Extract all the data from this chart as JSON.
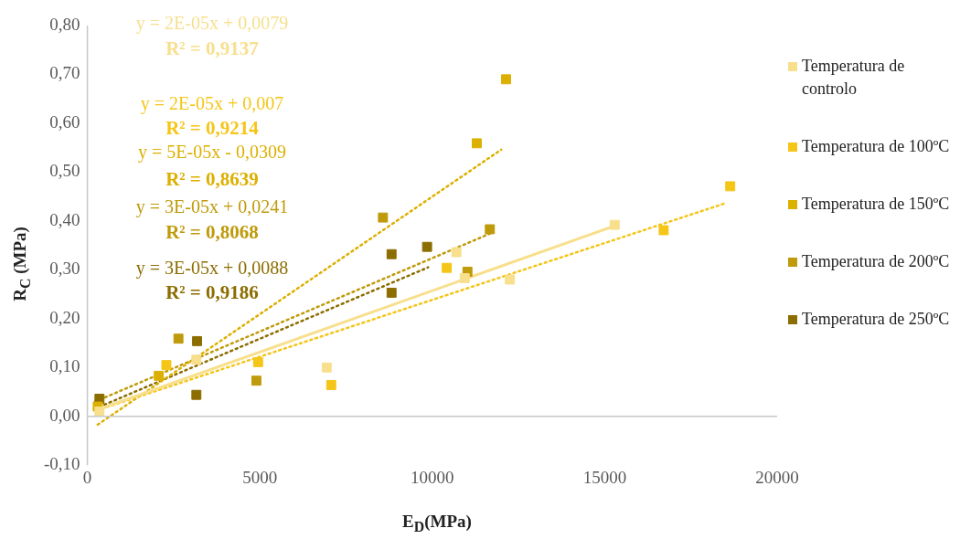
{
  "chart_data": {
    "type": "scatter",
    "xlabel": "E$_{D}$(MPa)",
    "ylabel": "R$_{C}$ (MPa)",
    "xlim": [
      0,
      20000
    ],
    "xticks": [
      0,
      5000,
      10000,
      15000,
      20000
    ],
    "ylim": [
      -0.1,
      0.8
    ],
    "yticks": [
      {
        "value": -0.1,
        "label": "-0,10"
      },
      {
        "value": 0,
        "label": "0,00"
      },
      {
        "value": 0.1,
        "label": "0,10"
      },
      {
        "value": 0.2,
        "label": "0,20"
      },
      {
        "value": 0.3,
        "label": "0,30"
      },
      {
        "value": 0.4,
        "label": "0,40"
      },
      {
        "value": 0.5,
        "label": "0,50"
      },
      {
        "value": 0.6,
        "label": "0,60"
      },
      {
        "value": 0.7,
        "label": "0,70"
      },
      {
        "value": 0.8,
        "label": "0,80"
      }
    ],
    "legend": "right",
    "marker": "square",
    "series": [
      {
        "name": "Temperatura de controlo",
        "color": "#f7df8c",
        "x": [
          350,
          3160,
          6940,
          10700,
          10940,
          12250,
          15290
        ],
        "values": [
          0.01,
          0.116,
          0.1,
          0.336,
          0.283,
          0.28,
          0.392
        ]
      },
      {
        "name": "Temperatura de 100ºC",
        "color": "#f5c518",
        "x": [
          2290,
          4950,
          7070,
          10420,
          16710,
          18640
        ],
        "values": [
          0.105,
          0.111,
          0.064,
          0.304,
          0.381,
          0.471
        ]
      },
      {
        "name": "Temperatura de 150ºC",
        "color": "#dcb000",
        "x": [
          300,
          2070,
          11290,
          12140
        ],
        "values": [
          0.02,
          0.083,
          0.559,
          0.69
        ]
      },
      {
        "name": "Temperatura de 200ºC",
        "color": "#bf9a0a",
        "x": [
          2640,
          4900,
          8570,
          11020,
          11670
        ],
        "values": [
          0.159,
          0.073,
          0.407,
          0.296,
          0.383
        ]
      },
      {
        "name": "Temperatura de 250ºC",
        "color": "#8c6d00",
        "x": [
          350,
          3180,
          3160,
          8820,
          8820,
          9850
        ],
        "values": [
          0.036,
          0.154,
          0.044,
          0.332,
          0.253,
          0.347
        ]
      },
      {
        "type": "line",
        "marker": "none",
        "color": "#f7df8c",
        "line_style": "solid",
        "x": [
          350,
          15290
        ],
        "values": [
          0.015,
          0.39
        ]
      },
      {
        "type": "line",
        "marker": "none",
        "color": "#f5c518",
        "line_style": "dotted",
        "x": [
          270,
          18530
        ],
        "values": [
          0.012,
          0.437
        ]
      },
      {
        "type": "line",
        "marker": "none",
        "color": "#dcb000",
        "line_style": "dotted",
        "x": [
          300,
          12000
        ],
        "values": [
          -0.017,
          0.546
        ]
      },
      {
        "type": "line",
        "marker": "none",
        "color": "#bf9a0a",
        "line_style": "dotted",
        "x": [
          220,
          11670
        ],
        "values": [
          0.03,
          0.374
        ]
      },
      {
        "type": "line",
        "marker": "none",
        "color": "#8c6d00",
        "line_style": "dotted",
        "x": [
          200,
          9880
        ],
        "values": [
          0.015,
          0.305
        ]
      }
    ],
    "annotations": [
      "y = 2E-05x + 0,0079",
      "R² = 0,9137",
      "y = 2E-05x + 0,007",
      "R² = 0,9214",
      "y = 5E-05x - 0,0309",
      "R² = 0,8639",
      "y = 3E-05x + 0,0241",
      "R² = 0,8068",
      "y = 3E-05x + 0,0088",
      "R² = 0,9186"
    ]
  }
}
